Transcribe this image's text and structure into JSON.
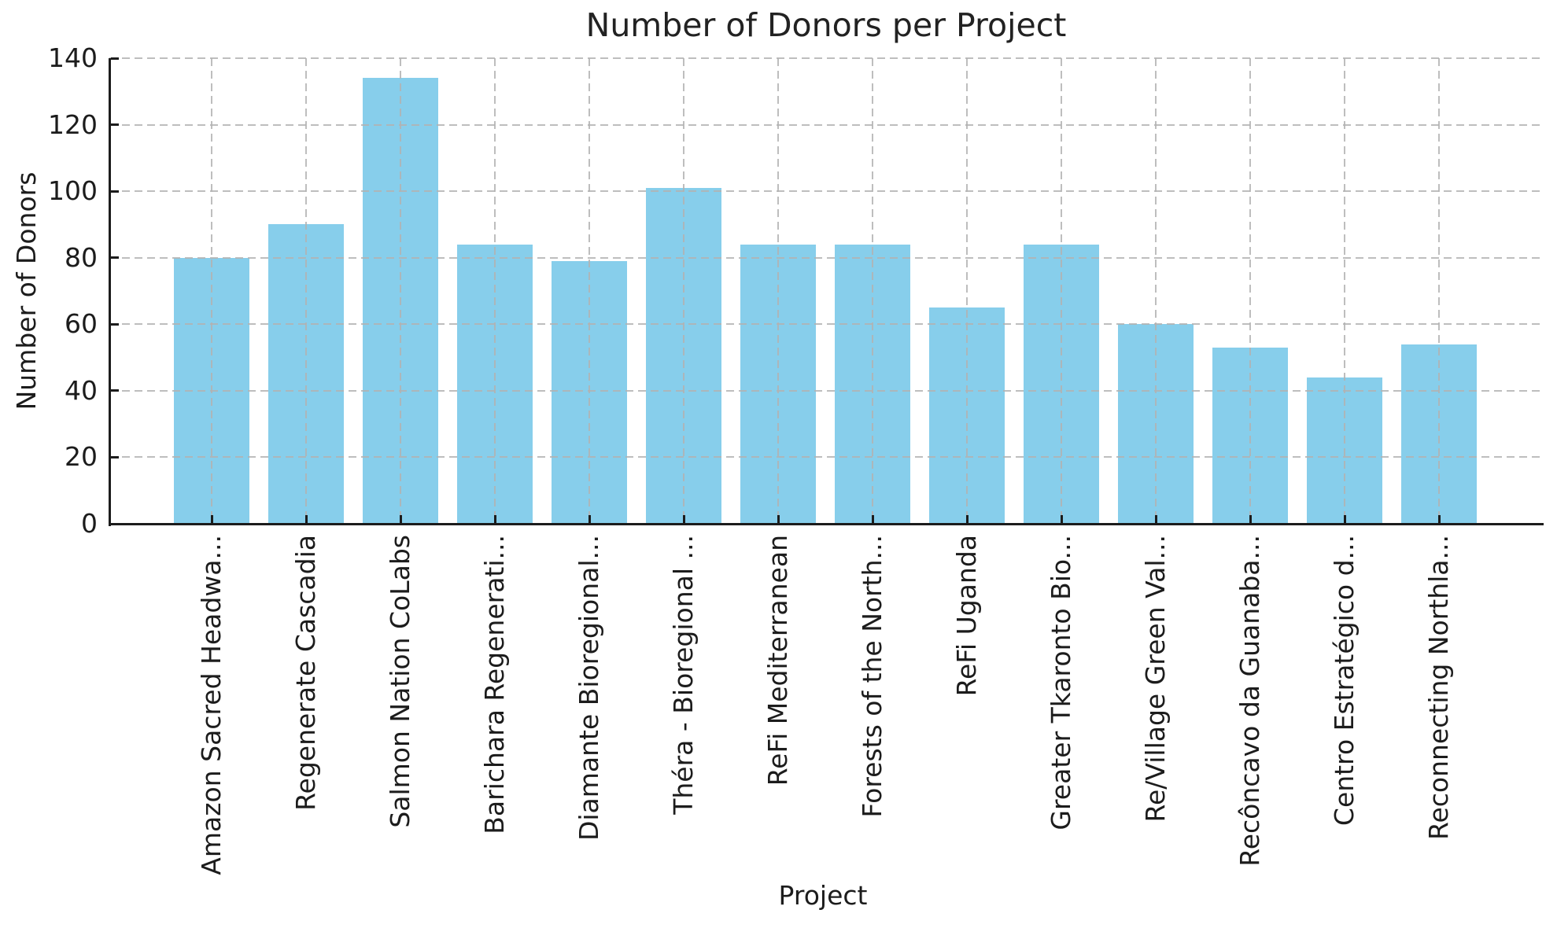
{
  "chart_data": {
    "type": "bar",
    "title": "Number of Donors per Project",
    "xlabel": "Project",
    "ylabel": "Number of Donors",
    "categories": [
      "Amazon Sacred Headwa...",
      "Regenerate Cascadia",
      "Salmon Nation CoLabs",
      "Barichara Regenerati...",
      "Diamante Bioregional...",
      "Théra - Bioregional ...",
      "ReFi Mediterranean",
      "Forests of the North...",
      "ReFi Uganda",
      "Greater Tkaronto Bio...",
      "Re/Village Green Val...",
      "Recôncavo da Guanaba...",
      "Centro Estratégico d...",
      "Reconnecting Northla..."
    ],
    "values": [
      80,
      90,
      134,
      84,
      79,
      101,
      84,
      84,
      65,
      84,
      60,
      53,
      44,
      54
    ],
    "ylim": [
      0,
      140
    ],
    "yticks": [
      0,
      20,
      40,
      60,
      80,
      100,
      120,
      140
    ],
    "bar_color": "#87CEEB",
    "grid": "dashed",
    "grid_color": "#c6c6c6",
    "axis_color": "#1c1c1c",
    "legend_visible": false
  }
}
